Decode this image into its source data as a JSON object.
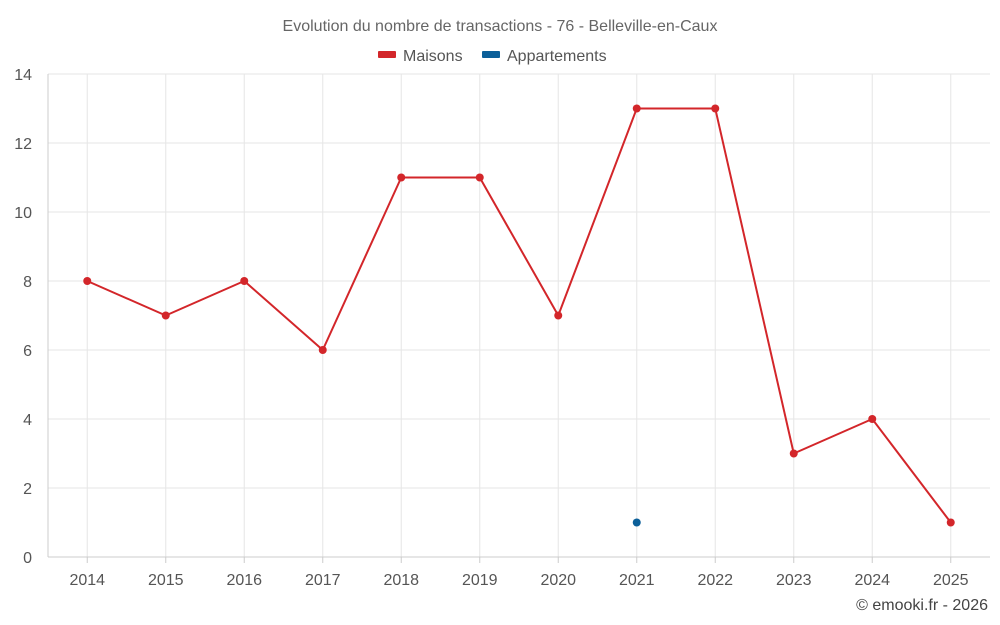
{
  "chart_data": {
    "type": "line",
    "title": "Evolution du nombre de transactions - 76 - Belleville-en-Caux",
    "categories": [
      "2014",
      "2015",
      "2016",
      "2017",
      "2018",
      "2019",
      "2020",
      "2021",
      "2022",
      "2023",
      "2024",
      "2025"
    ],
    "series": [
      {
        "name": "Maisons",
        "color": "#d3262a",
        "values": [
          8,
          7,
          8,
          6,
          11,
          11,
          7,
          13,
          13,
          3,
          4,
          1
        ]
      },
      {
        "name": "Appartements",
        "color": "#0b5f99",
        "values": [
          null,
          null,
          null,
          null,
          null,
          null,
          null,
          1,
          null,
          null,
          null,
          null
        ]
      }
    ],
    "yticks": [
      "0",
      "2",
      "4",
      "6",
      "8",
      "10",
      "12",
      "14"
    ],
    "ylim": [
      0,
      14
    ],
    "grid": true,
    "legend_position": "top-center",
    "xlabel": "",
    "ylabel": ""
  },
  "credit": "© emooki.fr - 2026"
}
